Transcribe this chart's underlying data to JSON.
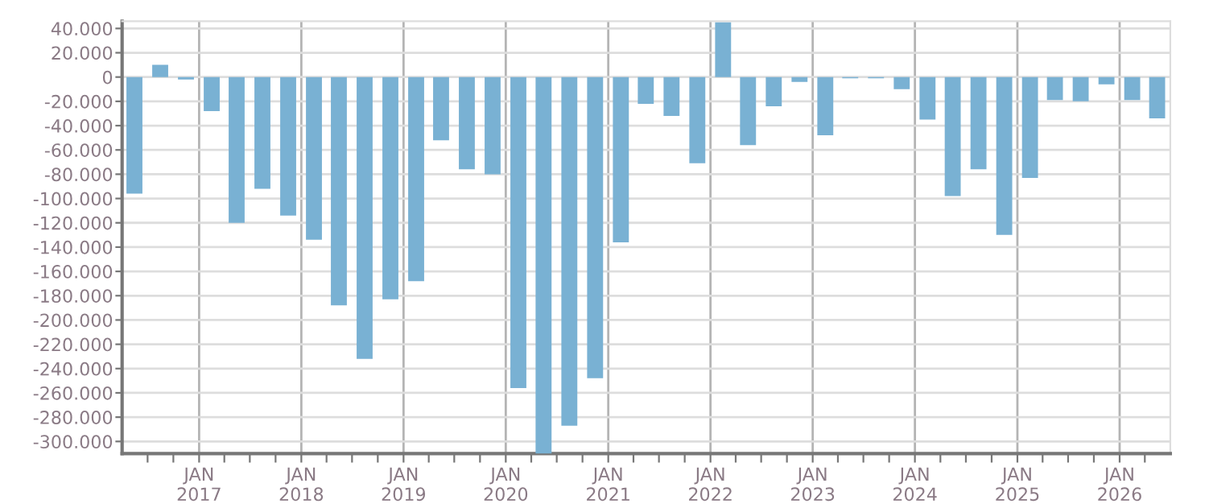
{
  "chart_data": {
    "type": "bar",
    "x": [
      "2016-05-15",
      "2016-08-15",
      "2016-11-15",
      "2017-02-15",
      "2017-05-15",
      "2017-08-15",
      "2017-11-15",
      "2018-02-15",
      "2018-05-15",
      "2018-08-15",
      "2018-11-15",
      "2019-02-15",
      "2019-05-15",
      "2019-08-15",
      "2019-11-15",
      "2020-02-15",
      "2020-05-15",
      "2020-08-15",
      "2020-11-15",
      "2021-02-15",
      "2021-05-15",
      "2021-08-15",
      "2021-11-15",
      "2022-02-15",
      "2022-05-15",
      "2022-08-15",
      "2022-11-15",
      "2023-02-15",
      "2023-05-15",
      "2023-08-15",
      "2023-11-15",
      "2024-02-15",
      "2024-05-15",
      "2024-08-15",
      "2024-11-15",
      "2025-02-15",
      "2025-05-15",
      "2025-08-15",
      "2025-11-15",
      "2026-02-15",
      "2026-05-15"
    ],
    "values": [
      -96000,
      10000,
      -2000,
      -28000,
      -120000,
      -92000,
      -114000,
      -134000,
      -188000,
      -232000,
      -183000,
      -168000,
      -52000,
      -76000,
      -80000,
      -256000,
      -310000,
      -287000,
      -248000,
      -136000,
      -22000,
      -32000,
      -71000,
      45000,
      -56000,
      -24000,
      -4000,
      -48000,
      -1000,
      -1000,
      -10000,
      -35000,
      -98000,
      -76000,
      -130000,
      -83000,
      -19000,
      -20000,
      -6000,
      -19000,
      -34000
    ],
    "color": "#79b1d3",
    "xlim": [
      "2016-04-01",
      "2026-07-01"
    ],
    "xticks": [
      {
        "value": "2016-07-01",
        "label": null
      },
      {
        "value": "2016-10-01",
        "label": null
      },
      {
        "value": "2017-01-01",
        "label": "JAN\n2017"
      },
      {
        "value": "2017-04-01",
        "label": null
      },
      {
        "value": "2017-07-01",
        "label": null
      },
      {
        "value": "2017-10-01",
        "label": null
      },
      {
        "value": "2018-01-01",
        "label": "JAN\n2018"
      },
      {
        "value": "2018-04-01",
        "label": null
      },
      {
        "value": "2018-07-01",
        "label": null
      },
      {
        "value": "2018-10-01",
        "label": null
      },
      {
        "value": "2019-01-01",
        "label": "JAN\n2019"
      },
      {
        "value": "2019-04-01",
        "label": null
      },
      {
        "value": "2019-07-01",
        "label": null
      },
      {
        "value": "2019-10-01",
        "label": null
      },
      {
        "value": "2020-01-01",
        "label": "JAN\n2020"
      },
      {
        "value": "2020-04-01",
        "label": null
      },
      {
        "value": "2020-07-01",
        "label": null
      },
      {
        "value": "2020-10-01",
        "label": null
      },
      {
        "value": "2021-01-01",
        "label": "JAN\n2021"
      },
      {
        "value": "2021-04-01",
        "label": null
      },
      {
        "value": "2021-07-01",
        "label": null
      },
      {
        "value": "2021-10-01",
        "label": null
      },
      {
        "value": "2022-01-01",
        "label": "JAN\n2022"
      },
      {
        "value": "2022-04-01",
        "label": null
      },
      {
        "value": "2022-07-01",
        "label": null
      },
      {
        "value": "2022-10-01",
        "label": null
      },
      {
        "value": "2023-01-01",
        "label": "JAN\n2023"
      },
      {
        "value": "2023-04-01",
        "label": null
      },
      {
        "value": "2023-07-01",
        "label": null
      },
      {
        "value": "2023-10-01",
        "label": null
      },
      {
        "value": "2024-01-01",
        "label": "JAN\n2024"
      },
      {
        "value": "2024-04-01",
        "label": null
      },
      {
        "value": "2024-07-01",
        "label": null
      },
      {
        "value": "2024-10-01",
        "label": null
      },
      {
        "value": "2025-01-01",
        "label": "JAN\n2025"
      },
      {
        "value": "2025-04-01",
        "label": null
      },
      {
        "value": "2025-07-01",
        "label": null
      },
      {
        "value": "2025-10-01",
        "label": null
      },
      {
        "value": "2026-01-01",
        "label": "JAN\n2026"
      },
      {
        "value": "2026-04-01",
        "label": null
      }
    ],
    "ylim": [
      -310000,
      46000
    ],
    "yticks": [
      {
        "value": 40000,
        "label": "40.000"
      },
      {
        "value": 20000,
        "label": "20.000"
      },
      {
        "value": 0,
        "label": "0"
      },
      {
        "value": -20000,
        "label": "-20.000"
      },
      {
        "value": -40000,
        "label": "-40.000"
      },
      {
        "value": -60000,
        "label": "-60.000"
      },
      {
        "value": -80000,
        "label": "-80.000"
      },
      {
        "value": -100000,
        "label": "-100.000"
      },
      {
        "value": -120000,
        "label": "-120.000"
      },
      {
        "value": -140000,
        "label": "-140.000"
      },
      {
        "value": -160000,
        "label": "-160.000"
      },
      {
        "value": -180000,
        "label": "-180.000"
      },
      {
        "value": -200000,
        "label": "-200.000"
      },
      {
        "value": -220000,
        "label": "-220.000"
      },
      {
        "value": -240000,
        "label": "-240.000"
      },
      {
        "value": -260000,
        "label": "-260.000"
      },
      {
        "value": -280000,
        "label": "-280.000"
      },
      {
        "value": -300000,
        "label": "-300.000"
      }
    ],
    "grid": true
  }
}
